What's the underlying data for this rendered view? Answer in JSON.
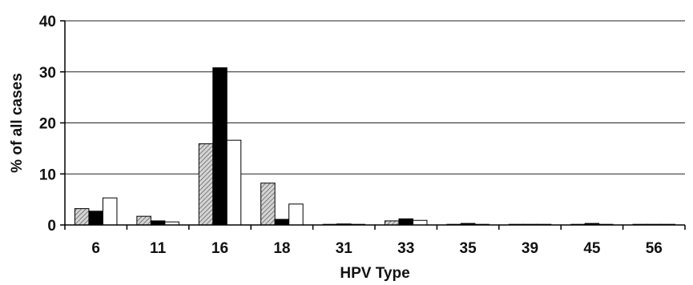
{
  "chart_data": {
    "type": "bar",
    "title": "",
    "xlabel": "HPV Type",
    "ylabel": "% of all cases",
    "categories": [
      "6",
      "11",
      "16",
      "18",
      "31",
      "33",
      "35",
      "39",
      "45",
      "56"
    ],
    "series": [
      {
        "pattern": "hatched",
        "fill": "#cfcfcf",
        "values": [
          3.2,
          1.7,
          15.9,
          8.2,
          0.1,
          0.8,
          0.1,
          0.0,
          0.1,
          0.1
        ]
      },
      {
        "pattern": "solid",
        "fill": "#000000",
        "values": [
          2.7,
          0.8,
          30.8,
          1.1,
          0.2,
          1.2,
          0.3,
          0.0,
          0.3,
          0.0
        ]
      },
      {
        "pattern": "outline",
        "fill": "#ffffff",
        "values": [
          5.3,
          0.6,
          16.6,
          4.1,
          0.0,
          0.9,
          0.0,
          0.0,
          0.0,
          0.0
        ]
      }
    ],
    "yticks": [
      0,
      10,
      20,
      30,
      40
    ],
    "ylim": [
      0,
      40
    ],
    "grid": true,
    "legend": "none"
  }
}
